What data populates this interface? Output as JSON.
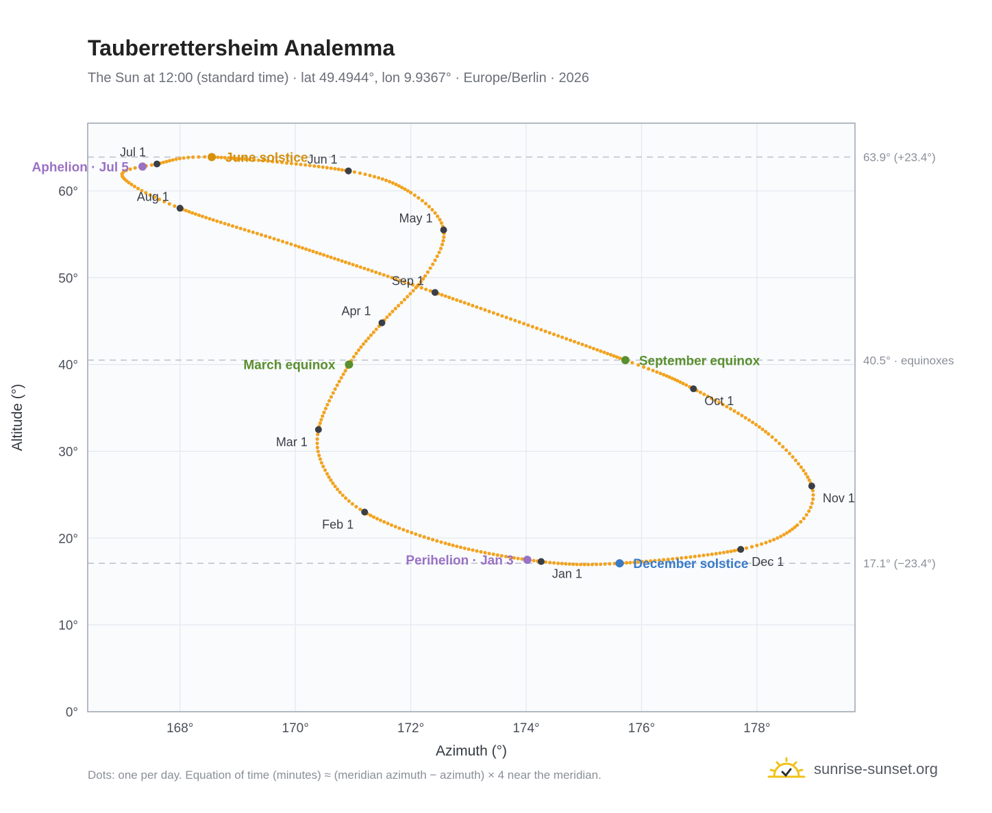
{
  "title": "Tauberrettersheim Analemma",
  "subtitle": "The Sun at 12:00 (standard time) · lat 49.4944°, lon 9.9367° · Europe/Berlin · 2026",
  "footnote": "Dots: one per day. Equation of time (minutes) ≈ (meridian azimuth − azimuth) × 4 near the meridian.",
  "brand": {
    "name": "sunrise-sunset.org",
    "icon": "sun-check-icon",
    "color": "#f2c11a"
  },
  "colors": {
    "curve": "#f2a320",
    "month_marker": "#3a3f47",
    "solstice_june": "#d6900e",
    "solstice_december": "#3a7bc8",
    "equinox": "#5a8f2e",
    "perihelion_aphelion": "#9a72c4",
    "reference_line": "#c3c8d0",
    "plot_background": "#f9fbfd",
    "grid": "#e3e8ee",
    "frame": "#9aa3b0"
  },
  "chart_data": {
    "type": "scatter",
    "xlabel": "Azimuth (°)",
    "ylabel": "Altitude (°)",
    "xlim": [
      166.4,
      179.7
    ],
    "ylim": [
      0,
      67.8
    ],
    "xticks": [
      168,
      170,
      172,
      174,
      176,
      178
    ],
    "yticks": [
      0,
      10,
      20,
      30,
      40,
      50,
      60
    ],
    "tick_suffix": "°",
    "grid": true,
    "series": [
      {
        "marker": "daily dots",
        "anchors": [
          {
            "date": "Jan 1",
            "az": 174.26,
            "alt": 17.3
          },
          {
            "date": "Jan 15",
            "az": 172.6,
            "alt": 19.4
          },
          {
            "date": "Feb 1",
            "az": 171.2,
            "alt": 23.0
          },
          {
            "date": "Feb 15",
            "az": 170.55,
            "alt": 27.4
          },
          {
            "date": "Mar 1",
            "az": 170.4,
            "alt": 32.5
          },
          {
            "date": "Mar 20",
            "az": 170.93,
            "alt": 40.0
          },
          {
            "date": "Apr 1",
            "az": 171.5,
            "alt": 44.8
          },
          {
            "date": "Apr 15",
            "az": 172.25,
            "alt": 50.2
          },
          {
            "date": "May 1",
            "az": 172.57,
            "alt": 55.5
          },
          {
            "date": "May 15",
            "az": 172.0,
            "alt": 59.8
          },
          {
            "date": "Jun 1",
            "az": 170.92,
            "alt": 62.3
          },
          {
            "date": "Jun 21",
            "az": 168.55,
            "alt": 63.9
          },
          {
            "date": "Jul 1",
            "az": 167.6,
            "alt": 63.1
          },
          {
            "date": "Jul 12",
            "az": 167.0,
            "alt": 61.7
          },
          {
            "date": "Aug 1",
            "az": 168.0,
            "alt": 58.0
          },
          {
            "date": "Aug 15",
            "az": 170.0,
            "alt": 53.7
          },
          {
            "date": "Sep 1",
            "az": 172.42,
            "alt": 48.3
          },
          {
            "date": "Sep 23",
            "az": 175.72,
            "alt": 40.5
          },
          {
            "date": "Oct 1",
            "az": 176.9,
            "alt": 37.2
          },
          {
            "date": "Oct 15",
            "az": 178.2,
            "alt": 32.0
          },
          {
            "date": "Nov 1",
            "az": 178.95,
            "alt": 26.0
          },
          {
            "date": "Nov 15",
            "az": 178.7,
            "alt": 21.5
          },
          {
            "date": "Dec 1",
            "az": 177.72,
            "alt": 18.7
          },
          {
            "date": "Dec 21",
            "az": 175.62,
            "alt": 17.1
          },
          {
            "date": "Jan 1",
            "az": 174.26,
            "alt": 17.3
          }
        ]
      }
    ],
    "month_markers": [
      {
        "label": "Jan 1",
        "az": 174.26,
        "alt": 17.3,
        "label_pos": "below-right"
      },
      {
        "label": "Feb 1",
        "az": 171.2,
        "alt": 23.0,
        "label_pos": "below-left"
      },
      {
        "label": "Mar 1",
        "az": 170.4,
        "alt": 32.5,
        "label_pos": "below-left"
      },
      {
        "label": "Apr 1",
        "az": 171.5,
        "alt": 44.8,
        "label_pos": "above-left"
      },
      {
        "label": "May 1",
        "az": 172.57,
        "alt": 55.5,
        "label_pos": "above-left"
      },
      {
        "label": "Jun 1",
        "az": 170.92,
        "alt": 62.3,
        "label_pos": "above-left"
      },
      {
        "label": "Jul 1",
        "az": 167.6,
        "alt": 63.1,
        "label_pos": "above-left"
      },
      {
        "label": "Aug 1",
        "az": 168.0,
        "alt": 58.0,
        "label_pos": "above-left"
      },
      {
        "label": "Sep 1",
        "az": 172.42,
        "alt": 48.3,
        "label_pos": "above-left"
      },
      {
        "label": "Oct 1",
        "az": 176.9,
        "alt": 37.2,
        "label_pos": "below-right"
      },
      {
        "label": "Nov 1",
        "az": 178.95,
        "alt": 26.0,
        "label_pos": "below-right"
      },
      {
        "label": "Dec 1",
        "az": 177.72,
        "alt": 18.7,
        "label_pos": "below-right"
      }
    ],
    "events": [
      {
        "label": "June solstice",
        "az": 168.55,
        "alt": 63.9,
        "color": "#d6900e",
        "side": "right"
      },
      {
        "label": "December solstice",
        "az": 175.62,
        "alt": 17.1,
        "color": "#3a7bc8",
        "side": "right"
      },
      {
        "label": "March equinox",
        "az": 170.93,
        "alt": 40.0,
        "color": "#5a8f2e",
        "side": "left"
      },
      {
        "label": "September equinox",
        "az": 175.72,
        "alt": 40.5,
        "color": "#5a8f2e",
        "side": "right"
      },
      {
        "label": "Perihelion · Jan 3",
        "az": 174.02,
        "alt": 17.5,
        "color": "#9a72c4",
        "side": "left"
      },
      {
        "label": "Aphelion · Jul 5",
        "az": 167.35,
        "alt": 62.8,
        "color": "#9a72c4",
        "side": "left"
      }
    ],
    "reference_lines": [
      {
        "alt": 63.9,
        "label": "63.9° (+23.4°)"
      },
      {
        "alt": 40.5,
        "label": "40.5° · equinoxes"
      },
      {
        "alt": 17.1,
        "label": "17.1° (−23.4°)"
      }
    ]
  }
}
